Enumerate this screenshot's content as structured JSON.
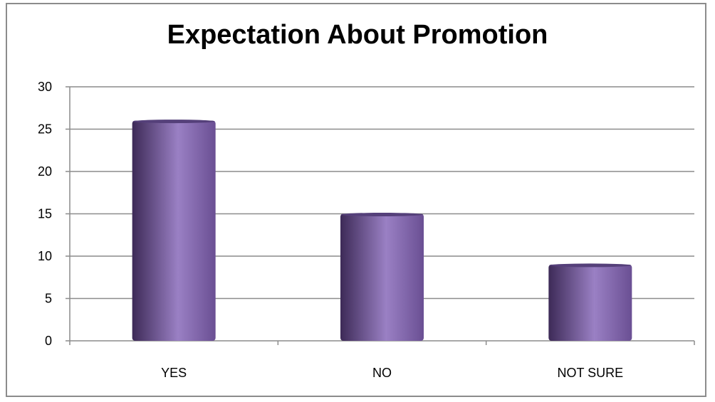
{
  "chart_data": {
    "type": "bar",
    "title": "Expectation About Promotion",
    "categories": [
      "YES",
      "NO",
      "NOT SURE"
    ],
    "values": [
      26,
      15,
      9
    ],
    "ylim": [
      0,
      30
    ],
    "yticks": [
      0,
      5,
      10,
      15,
      20,
      25,
      30
    ],
    "xlabel": "",
    "ylabel": "",
    "grid": true,
    "legend": "none"
  },
  "colors": {
    "bar_dark": "#3d2a57",
    "bar_mid": "#6a4f93",
    "bar_light": "#9a80c4",
    "bar_top": "#55407a",
    "gridline": "#8c8c8c",
    "frame": "#8c8c8c"
  }
}
